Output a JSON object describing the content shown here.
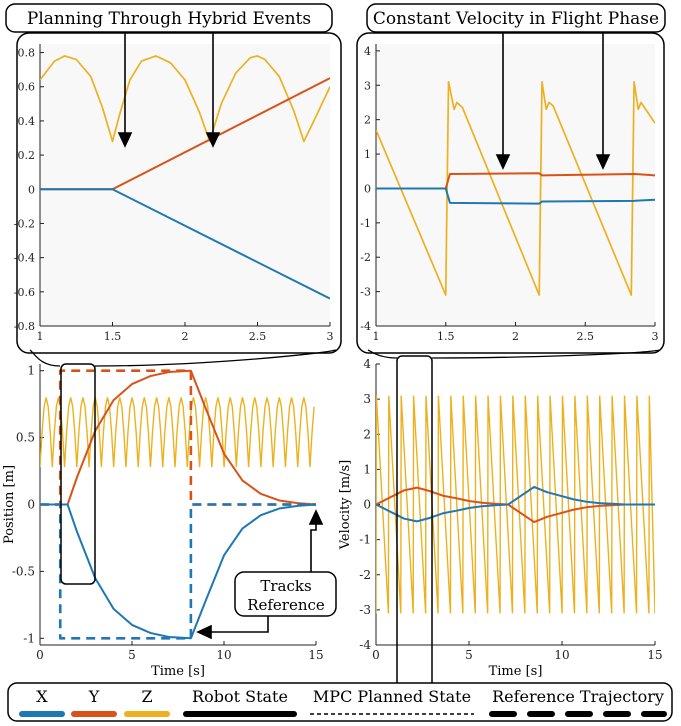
{
  "callouts": {
    "left_title": "Planning Through Hybrid Events",
    "right_title": "Constant Velocity in Flight Phase",
    "tracks_label_1": "Tracks",
    "tracks_label_2": "Reference"
  },
  "legend": {
    "x": "X",
    "y": "Y",
    "z": "Z",
    "robot_state": "Robot State",
    "mpc_planned": "MPC Planned State",
    "reference": "Reference Trajectory"
  },
  "colors": {
    "x": "#1f77b4",
    "y": "#d95319",
    "z": "#edb120"
  },
  "chart_data": [
    {
      "id": "zoom_position",
      "type": "line",
      "xlim": [
        1,
        3
      ],
      "ylim": [
        -0.8,
        0.85
      ],
      "xticks": [
        "1",
        "1.5",
        "2",
        "2.5",
        "3"
      ],
      "yticks": [
        "-0.8",
        "-0.6",
        "-0.4",
        "-0.2",
        "0",
        "0.2",
        "0.4",
        "0.6",
        "0.8"
      ],
      "series": [
        {
          "key": "z",
          "x": [
            1,
            1.1,
            1.17,
            1.25,
            1.35,
            1.43,
            1.5,
            1.55,
            1.62,
            1.7,
            1.8,
            1.9,
            2.0,
            2.1,
            2.17,
            2.25,
            2.35,
            2.45,
            2.5,
            2.55,
            2.65,
            2.75,
            2.82,
            2.9,
            3.0
          ],
          "values": [
            0.64,
            0.75,
            0.78,
            0.76,
            0.66,
            0.48,
            0.28,
            0.44,
            0.64,
            0.75,
            0.78,
            0.74,
            0.64,
            0.45,
            0.28,
            0.5,
            0.68,
            0.77,
            0.78,
            0.76,
            0.66,
            0.46,
            0.28,
            0.42,
            0.6
          ]
        },
        {
          "key": "y",
          "x": [
            1,
            1.5,
            3
          ],
          "values": [
            0,
            0,
            0.65
          ]
        },
        {
          "key": "x",
          "x": [
            1,
            1.5,
            3
          ],
          "values": [
            0,
            0,
            -0.64
          ]
        }
      ]
    },
    {
      "id": "zoom_velocity",
      "type": "line",
      "xlim": [
        1,
        3
      ],
      "ylim": [
        -4,
        4.2
      ],
      "xticks": [
        "1",
        "1.5",
        "2",
        "2.5",
        "3"
      ],
      "yticks": [
        "-4",
        "-3",
        "-2",
        "-1",
        "0",
        "1",
        "2",
        "3",
        "4"
      ],
      "series": [
        {
          "key": "z",
          "x": [
            1,
            1.5,
            1.52,
            1.56,
            1.58,
            1.62,
            2.17,
            2.19,
            2.22,
            2.24,
            2.27,
            2.83,
            2.85,
            2.88,
            2.9,
            3.0
          ],
          "values": [
            1.7,
            -3.1,
            3.1,
            2.3,
            2.5,
            2.35,
            -3.1,
            3.1,
            2.3,
            2.5,
            2.4,
            -3.1,
            3.1,
            2.3,
            2.5,
            1.9
          ]
        },
        {
          "key": "y",
          "x": [
            1,
            1.5,
            1.53,
            2.17,
            2.19,
            2.85,
            3.0
          ],
          "values": [
            0,
            0,
            0.42,
            0.44,
            0.38,
            0.42,
            0.38
          ]
        },
        {
          "key": "x",
          "x": [
            1,
            1.5,
            1.53,
            2.17,
            2.19,
            2.85,
            3.0
          ],
          "values": [
            0,
            0,
            -0.42,
            -0.44,
            -0.38,
            -0.36,
            -0.33
          ]
        }
      ]
    },
    {
      "id": "position",
      "type": "line",
      "xlim": [
        0,
        15
      ],
      "ylim": [
        -1.05,
        1.05
      ],
      "xticks": [
        "0",
        "5",
        "10",
        "15"
      ],
      "yticks": [
        "-1",
        "-0.5",
        "0",
        "0.5",
        "1"
      ],
      "xlabel": "Time [s]",
      "ylabel": "Position [m]",
      "series": [
        {
          "key": "y",
          "x": [
            0,
            1.5,
            2,
            3,
            4,
            5,
            6,
            7,
            8.2,
            9,
            10,
            11,
            12,
            13,
            14,
            15
          ],
          "values": [
            0,
            0,
            0.2,
            0.55,
            0.78,
            0.9,
            0.96,
            0.99,
            1.0,
            0.72,
            0.38,
            0.18,
            0.08,
            0.03,
            0.01,
            0
          ]
        },
        {
          "key": "x",
          "x": [
            0,
            1.5,
            2,
            3,
            4,
            5,
            6,
            7,
            8.2,
            9,
            10,
            11,
            12,
            13,
            14,
            15
          ],
          "values": [
            0,
            0,
            -0.2,
            -0.55,
            -0.78,
            -0.9,
            -0.96,
            -0.99,
            -1.0,
            -0.72,
            -0.38,
            -0.18,
            -0.08,
            -0.03,
            -0.01,
            0
          ]
        },
        {
          "key": "y_ref",
          "x": [
            0,
            1.1,
            1.1,
            8.2,
            8.2,
            15
          ],
          "values": [
            0,
            0,
            1,
            1,
            0,
            0
          ]
        },
        {
          "key": "x_ref",
          "x": [
            0,
            1.1,
            1.1,
            8.2,
            8.2,
            15
          ],
          "values": [
            0,
            0,
            -1,
            -1,
            0,
            0
          ]
        }
      ]
    },
    {
      "id": "velocity",
      "type": "line",
      "xlim": [
        0,
        15
      ],
      "ylim": [
        -4,
        4
      ],
      "xticks": [
        "0",
        "5",
        "10",
        "15"
      ],
      "yticks": [
        "-4",
        "-3",
        "-2",
        "-1",
        "0",
        "1",
        "2",
        "3",
        "4"
      ],
      "xlabel": "Time [s]",
      "ylabel": "Velocity [m/s]",
      "series": [
        {
          "key": "y",
          "x": [
            0,
            1.5,
            2.2,
            2.9,
            3.6,
            4.3,
            5.0,
            5.7,
            6.4,
            7.1,
            8.5,
            9.2,
            9.9,
            10.6,
            11.3,
            12.0,
            12.7,
            13.4,
            15
          ],
          "values": [
            0,
            0.4,
            0.48,
            0.38,
            0.25,
            0.18,
            0.1,
            0.05,
            0.02,
            0,
            -0.5,
            -0.35,
            -0.25,
            -0.15,
            -0.08,
            -0.04,
            -0.02,
            0,
            0
          ]
        },
        {
          "key": "x",
          "x": [
            0,
            1.5,
            2.2,
            2.9,
            3.6,
            4.3,
            5.0,
            5.7,
            6.4,
            7.1,
            8.5,
            9.2,
            9.9,
            10.6,
            11.3,
            12.0,
            12.7,
            13.4,
            15
          ],
          "values": [
            0,
            -0.4,
            -0.48,
            -0.38,
            -0.25,
            -0.18,
            -0.1,
            -0.05,
            -0.02,
            0,
            0.5,
            0.35,
            0.25,
            0.15,
            0.08,
            0.04,
            0.02,
            0,
            0
          ]
        }
      ]
    }
  ]
}
